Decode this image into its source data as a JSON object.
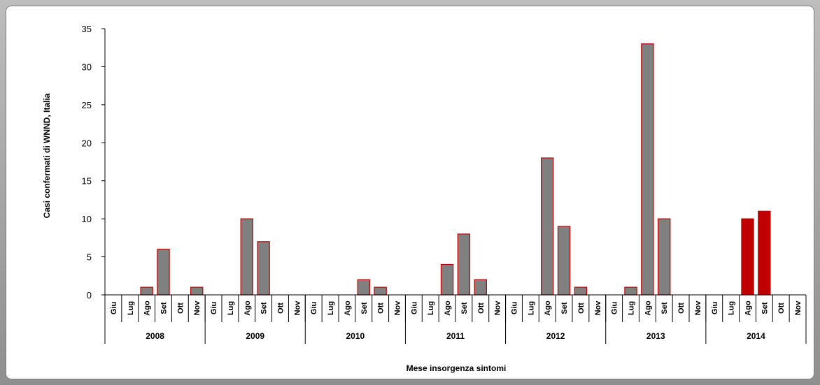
{
  "chart_data": {
    "type": "bar",
    "title": "",
    "xlabel": "Mese insorgenza sintomi",
    "ylabel": "Casi confermati di WNND, Italia",
    "ylim": [
      0,
      35
    ],
    "yticks": [
      "0",
      "5",
      "10",
      "15",
      "20",
      "25",
      "30",
      "35"
    ],
    "grid": false,
    "months": [
      "Giu",
      "Lug",
      "Ago",
      "Set",
      "Ott",
      "Nov"
    ],
    "years": [
      {
        "year": "2008",
        "values": [
          0,
          0,
          1,
          6,
          0,
          1
        ]
      },
      {
        "year": "2009",
        "values": [
          0,
          0,
          10,
          7,
          0,
          0
        ]
      },
      {
        "year": "2010",
        "values": [
          0,
          0,
          0,
          2,
          1,
          0
        ]
      },
      {
        "year": "2011",
        "values": [
          0,
          0,
          4,
          8,
          2,
          0
        ]
      },
      {
        "year": "2012",
        "values": [
          0,
          0,
          18,
          9,
          1,
          0
        ]
      },
      {
        "year": "2013",
        "values": [
          0,
          1,
          33,
          10,
          0,
          0
        ]
      },
      {
        "year": "2014",
        "values": [
          0,
          0,
          10,
          11,
          0,
          0
        ]
      }
    ],
    "colors": {
      "default_fill": "#808080",
      "highlight_fill": "#c00000",
      "bar_stroke": "#c00000"
    },
    "highlight_year": "2014"
  }
}
